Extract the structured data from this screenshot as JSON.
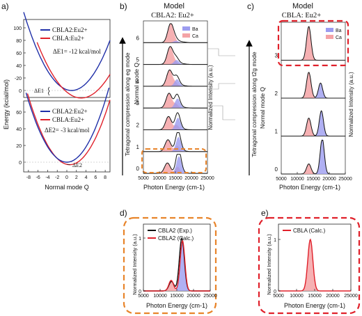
{
  "panel_a": {
    "label": "a)",
    "ylabel": "Energy (kcial/mol)",
    "xlabel": "Normal mode Q",
    "xticks": [
      "-8",
      "-6",
      "-4",
      "-2",
      "0",
      "2",
      "4",
      "6",
      "8"
    ],
    "top": {
      "yticks": [
        "0",
        "-20",
        "40",
        "60",
        "80",
        "100"
      ],
      "legend": [
        "CBLA2:Eu2+",
        "CBLA:Eu2+"
      ],
      "annotation": "ΔE1= -12 kcal/mol",
      "marker": "ΔE1"
    },
    "bottom": {
      "yticks": [
        "0",
        "20",
        "40",
        "60"
      ],
      "legend": [
        "CBLA2:Eu2+",
        "CBLA:Eu2+"
      ],
      "annotation": "ΔE2= -3 kcal/mol",
      "marker": "ΔE2"
    },
    "colors": {
      "cbla2": "#1f2fa8",
      "cbla": "#e0202a"
    }
  },
  "panel_b": {
    "label": "b)",
    "title_line1": "Model",
    "title_line2": "CBLA2: Eu2+",
    "side_label": "Tetragonal compression along eg mode",
    "ylabel": "Normal mode Q",
    "ylabel_right": "Normalized Intensity (a.u.)",
    "xlabel": "Photon Energy (cm-1)",
    "xticks": [
      "5000",
      "10000",
      "15000",
      "20000",
      "25000"
    ],
    "q_labels": [
      "0",
      "1",
      "2",
      "3",
      "4",
      "5",
      "6"
    ],
    "legend": [
      "Ba",
      "Ca"
    ]
  },
  "panel_c": {
    "label": "c)",
    "title_line1": "Model",
    "title_line2": "CBLA: Eu2+",
    "side_label": "Tetragonal compression along t2g mode",
    "ylabel": "Normal mode Q",
    "ylabel_right": "Normalized Intensity (a.u.)",
    "xlabel": "Photon Energy (cm-1)",
    "xticks": [
      "5000",
      "10000",
      "15000",
      "20000",
      "25000"
    ],
    "q_labels": [
      "0",
      "1",
      "2",
      "3"
    ],
    "legend": [
      "Ba",
      "Ca"
    ]
  },
  "panel_d": {
    "label": "d)",
    "legend": [
      "CBLA2 (Exp.)",
      "CBLA2 (Calc.)"
    ],
    "ylabel": "Normalized Intensity (a.u.)",
    "xlabel": "Photon Energy (cm-1)",
    "xticks": [
      "5000",
      "10000",
      "15000",
      "20000",
      "25000"
    ],
    "yticks": [
      "0",
      "1"
    ]
  },
  "panel_e": {
    "label": "e)",
    "legend": [
      "CBLA (Calc.)"
    ],
    "ylabel": "Normalized Intensity (a.u.)",
    "xlabel": "Photon Energy (cm-1)",
    "xticks": [
      "5000",
      "10000",
      "15000",
      "20000",
      "25000"
    ],
    "yticks": [
      "0",
      "1"
    ]
  },
  "colors": {
    "ba": "#9c9cf0",
    "ca": "#f4a3a6",
    "dash_orange": "#e8842a",
    "dash_red": "#e0202a"
  }
}
